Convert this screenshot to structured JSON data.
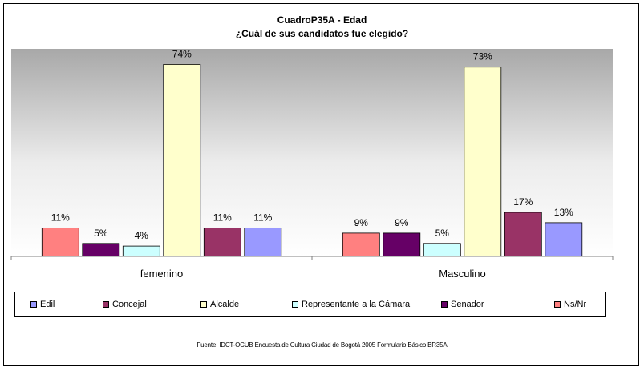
{
  "chart_data": {
    "type": "bar",
    "title": "CuadroP35A - Edad",
    "subtitle": "¿Cuál de sus candidatos fue elegido?",
    "categories": [
      "femenino",
      "Masculino"
    ],
    "series": [
      {
        "name": "Ns/Nr",
        "color": "#FF8080",
        "values": [
          11,
          9
        ],
        "labels": [
          "11%",
          "9%"
        ]
      },
      {
        "name": "Senador",
        "color": "#660066",
        "values": [
          5,
          9
        ],
        "labels": [
          "5%",
          "9%"
        ]
      },
      {
        "name": "Representante a la Cámara",
        "color": "#CCFFFF",
        "values": [
          4,
          5
        ],
        "labels": [
          "4%",
          "5%"
        ]
      },
      {
        "name": "Alcalde",
        "color": "#FFFFCC",
        "values": [
          74,
          73
        ],
        "labels": [
          "74%",
          "73%"
        ]
      },
      {
        "name": "Concejal",
        "color": "#993366",
        "values": [
          11,
          17
        ],
        "labels": [
          "11%",
          "17%"
        ]
      },
      {
        "name": "Edil",
        "color": "#9999FF",
        "values": [
          11,
          13
        ],
        "labels": [
          "11%",
          "13%"
        ]
      }
    ],
    "legend_order": [
      "Edil",
      "Concejal",
      "Alcalde",
      "Representante a la Cámara",
      "Senador",
      "Ns/Nr"
    ],
    "ylim": [
      0,
      80
    ],
    "grid": false,
    "legend_position": "bottom",
    "plot_background": "gradient-gray-to-white"
  },
  "source_note": "Fuente: IDCT-OCUB Encuesta de Cultura Ciudad de Bogotá 2005 Formulario Básico BR35A"
}
